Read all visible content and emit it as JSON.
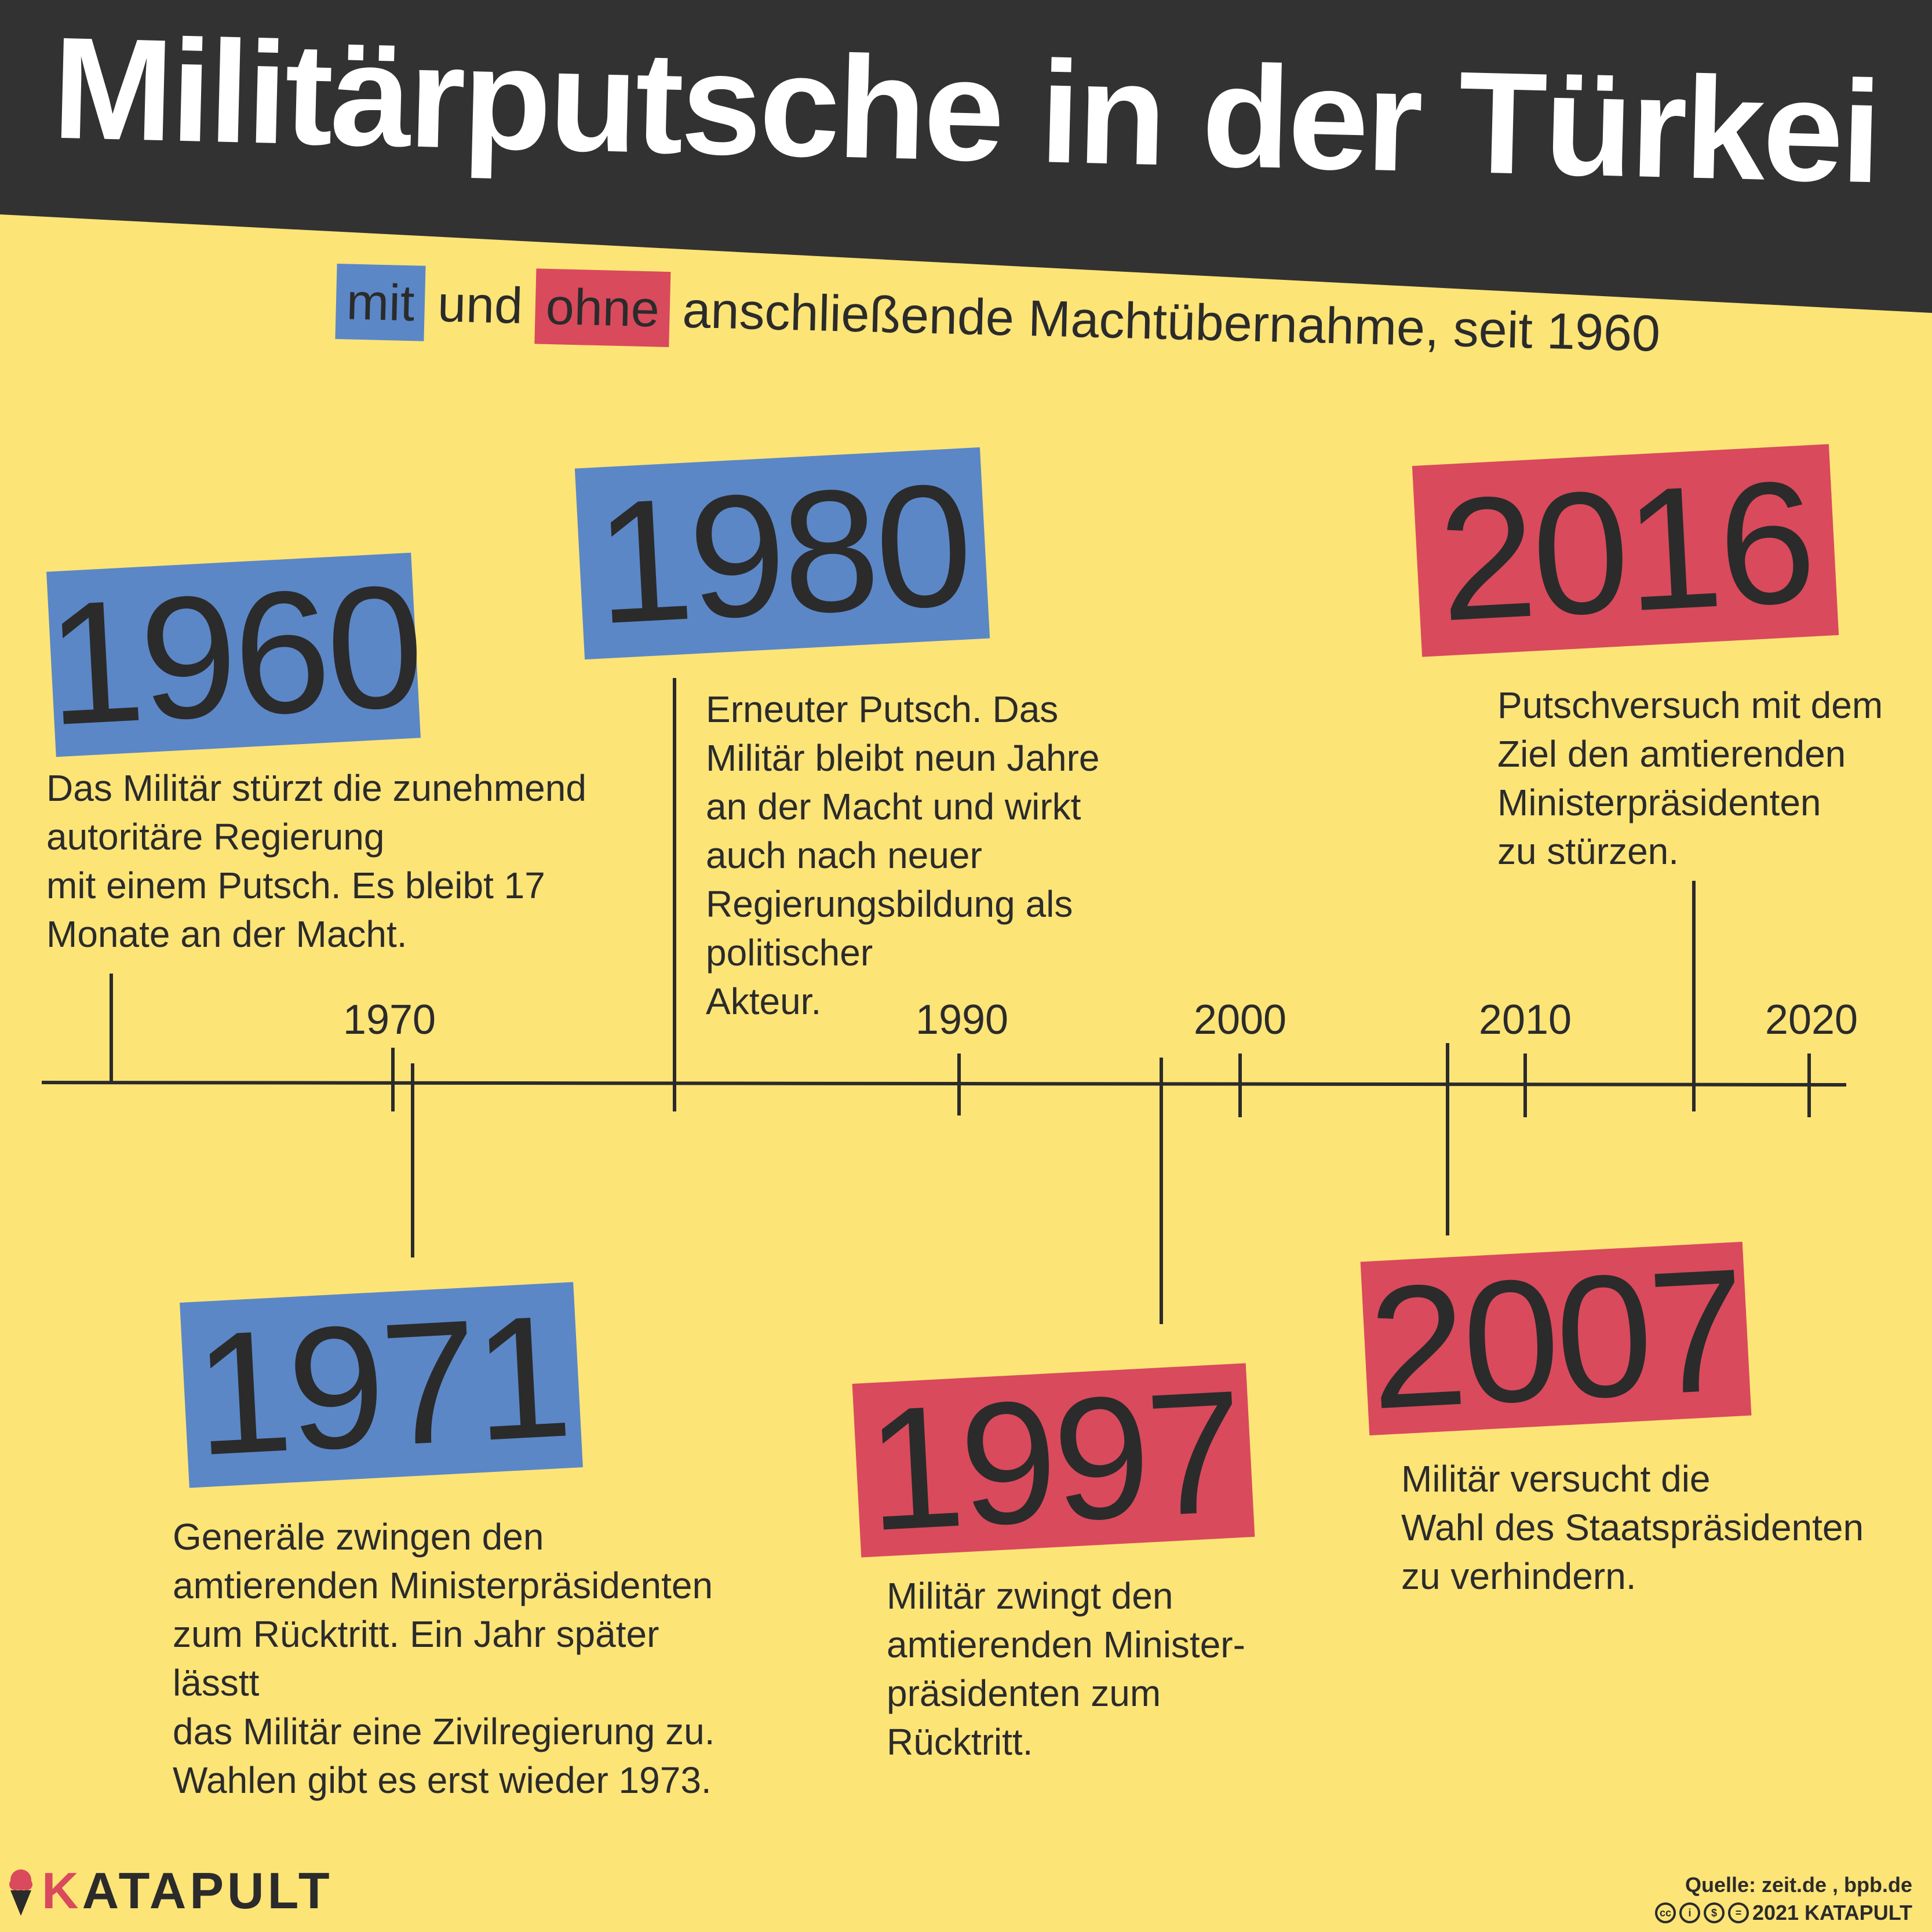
{
  "header": {
    "title": "Militärputsche in der Türkei",
    "subtitle_mit": "mit",
    "subtitle_und": "und",
    "subtitle_ohne": "ohne",
    "subtitle_rest": "anschließende Machtübernahme, seit 1960"
  },
  "colors": {
    "background": "#fde477",
    "header": "#323232",
    "blue": "#5b87c7",
    "red": "#d94a5c",
    "text": "#2b2b2b"
  },
  "axis_ticks": [
    "1970",
    "1990",
    "2000",
    "2010",
    "2020"
  ],
  "events": [
    {
      "year": "1960",
      "takeover": true,
      "text": "Das Militär stürzt die zunehmend\nautoritäre Regierung\nmit einem Putsch. Es bleibt 17\nMonate an der Macht."
    },
    {
      "year": "1971",
      "takeover": true,
      "text": "Generäle zwingen den\namtierenden Ministerpräsidenten\nzum Rücktritt. Ein Jahr später lässtt\ndas Militär eine Zivilregierung zu.\nWahlen gibt es erst wieder 1973."
    },
    {
      "year": "1980",
      "takeover": true,
      "text": "Erneuter Putsch. Das\nMilitär bleibt neun Jahre\nan der Macht und wirkt\nauch nach neuer\nRegierungsbildung als\npolitischer\nAkteur."
    },
    {
      "year": "1997",
      "takeover": false,
      "text": "Militär zwingt den\namtierenden Minister-\npräsidenten zum\nRücktritt."
    },
    {
      "year": "2007",
      "takeover": false,
      "text": "Militär versucht die\nWahl des Staatspräsidenten\nzu verhindern."
    },
    {
      "year": "2016",
      "takeover": false,
      "text": "Putschversuch mit dem\nZiel den amtierenden\nMinisterpräsidenten\nzu stürzen."
    }
  ],
  "footer": {
    "logo_k": "K",
    "logo_rest": "ATAPULT",
    "source": "Quelle: zeit.de , bpb.de",
    "copyright": "2021 KATAPULT",
    "license_icons": [
      "cc-icon",
      "by-icon",
      "nc-icon",
      "nd-icon"
    ]
  }
}
